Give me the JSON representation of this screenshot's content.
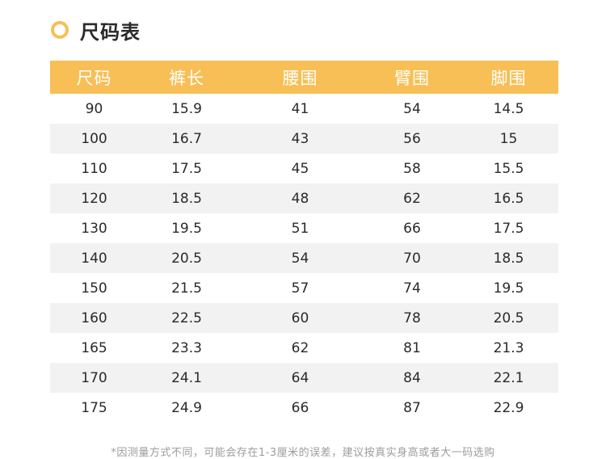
{
  "title": "尺码表",
  "colors": {
    "accent": "#f7bf55",
    "row_stripe": "#f2f2f2",
    "note": "#9c9c9c"
  },
  "table": {
    "headers": [
      "尺码",
      "裤长",
      "腰围",
      "臂围",
      "脚围"
    ],
    "rows": [
      [
        "90",
        "15.9",
        "41",
        "54",
        "14.5"
      ],
      [
        "100",
        "16.7",
        "43",
        "56",
        "15"
      ],
      [
        "110",
        "17.5",
        "45",
        "58",
        "15.5"
      ],
      [
        "120",
        "18.5",
        "48",
        "62",
        "16.5"
      ],
      [
        "130",
        "19.5",
        "51",
        "66",
        "17.5"
      ],
      [
        "140",
        "20.5",
        "54",
        "70",
        "18.5"
      ],
      [
        "150",
        "21.5",
        "57",
        "74",
        "19.5"
      ],
      [
        "160",
        "22.5",
        "60",
        "78",
        "20.5"
      ],
      [
        "165",
        "23.3",
        "62",
        "81",
        "21.3"
      ],
      [
        "170",
        "24.1",
        "64",
        "84",
        "22.1"
      ],
      [
        "175",
        "24.9",
        "66",
        "87",
        "22.9"
      ]
    ]
  },
  "footnote": "*因测量方式不同，可能会存在1-3厘米的误差，建议按真实身高或者大一码选购"
}
